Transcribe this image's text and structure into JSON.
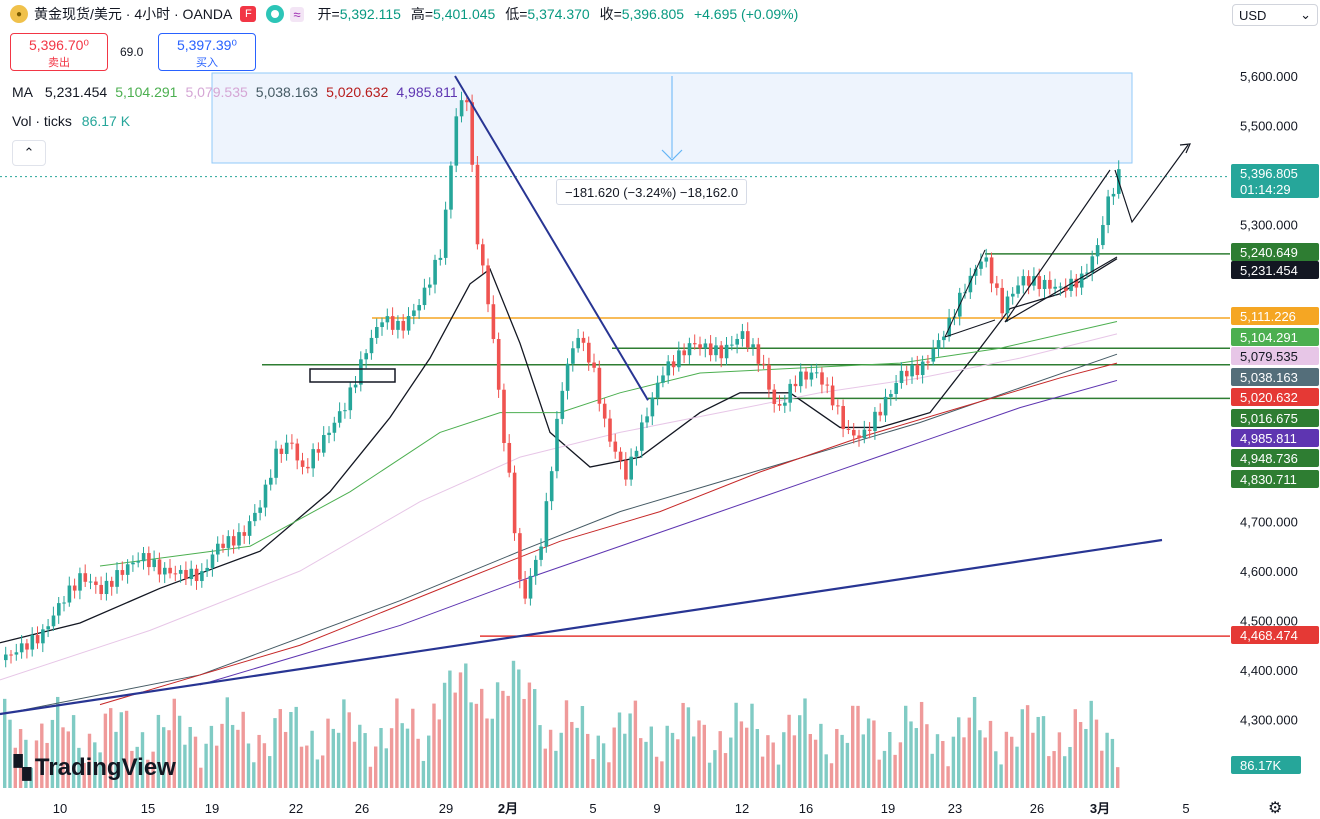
{
  "header": {
    "symbol": "黄金现货/美元 · 4小时 · OANDA",
    "flag_icon": "F",
    "open_label": "开=",
    "open": "5,392.115",
    "high_label": "高=",
    "high": "5,401.045",
    "low_label": "低=",
    "low": "5,374.370",
    "close_label": "收=",
    "close": "5,396.805",
    "change": "+4.695 (+0.09%)"
  },
  "currency": "USD",
  "trade": {
    "sell_price": "5,396.70⁰",
    "sell_label": "卖出",
    "spread": "69.0",
    "buy_price": "5,397.39⁰",
    "buy_label": "买入"
  },
  "ma_legend": {
    "label": "MA",
    "values": [
      {
        "text": "5,231.454",
        "color": "#131722"
      },
      {
        "text": "5,104.291",
        "color": "#4caf50"
      },
      {
        "text": "5,079.535",
        "color": "#d5a6d5"
      },
      {
        "text": "5,038.163",
        "color": "#455a64"
      },
      {
        "text": "5,020.632",
        "color": "#b71c1c"
      },
      {
        "text": "4,985.811",
        "color": "#5e35b1"
      }
    ]
  },
  "volume_legend": {
    "label": "Vol · ticks",
    "value": "86.17 K"
  },
  "measure_label": "−181.620 (−3.24%) −18,162.0",
  "watermark": "TradingView",
  "chart_data": {
    "type": "candlestick",
    "timeframe": "4小时",
    "y_axis": {
      "min": 4200,
      "max": 5690,
      "ticks": [
        4300,
        4400,
        4500,
        4600,
        4700,
        5300,
        5400,
        5500,
        5600
      ],
      "tick_labels": [
        "4,300.000",
        "4,400.000",
        "4,500.000",
        "4,600.000",
        "4,700.000",
        "5,300.000",
        "5,400.000",
        "5,500.000",
        "5,600.000"
      ]
    },
    "x_axis": {
      "ticks": [
        "10",
        "15",
        "19",
        "22",
        "26",
        "29",
        "2月",
        "5",
        "9",
        "12",
        "16",
        "19",
        "23",
        "26",
        "3月",
        "5"
      ]
    },
    "price_path": [
      [
        0,
        4420
      ],
      [
        15,
        4440
      ],
      [
        40,
        4470
      ],
      [
        60,
        4540
      ],
      [
        80,
        4590
      ],
      [
        100,
        4560
      ],
      [
        120,
        4600
      ],
      [
        140,
        4630
      ],
      [
        160,
        4600
      ],
      [
        200,
        4590
      ],
      [
        215,
        4650
      ],
      [
        240,
        4670
      ],
      [
        260,
        4740
      ],
      [
        275,
        4840
      ],
      [
        290,
        4860
      ],
      [
        300,
        4800
      ],
      [
        320,
        4860
      ],
      [
        345,
        4940
      ],
      [
        365,
        5050
      ],
      [
        380,
        5110
      ],
      [
        400,
        5090
      ],
      [
        420,
        5150
      ],
      [
        440,
        5250
      ],
      [
        455,
        5530
      ],
      [
        465,
        5560
      ],
      [
        475,
        5280
      ],
      [
        490,
        5100
      ],
      [
        500,
        4900
      ],
      [
        510,
        4750
      ],
      [
        520,
        4530
      ],
      [
        540,
        4660
      ],
      [
        560,
        4970
      ],
      [
        575,
        5080
      ],
      [
        590,
        5020
      ],
      [
        605,
        4880
      ],
      [
        625,
        4790
      ],
      [
        640,
        4890
      ],
      [
        660,
        5000
      ],
      [
        690,
        5060
      ],
      [
        720,
        5040
      ],
      [
        740,
        5080
      ],
      [
        760,
        5020
      ],
      [
        775,
        4920
      ],
      [
        795,
        4990
      ],
      [
        815,
        5000
      ],
      [
        830,
        4950
      ],
      [
        845,
        4880
      ],
      [
        860,
        4870
      ],
      [
        880,
        4930
      ],
      [
        900,
        5000
      ],
      [
        920,
        5010
      ],
      [
        945,
        5090
      ],
      [
        960,
        5160
      ],
      [
        982,
        5240
      ],
      [
        1000,
        5130
      ],
      [
        1020,
        5190
      ],
      [
        1040,
        5180
      ],
      [
        1060,
        5170
      ],
      [
        1080,
        5190
      ],
      [
        1095,
        5250
      ],
      [
        1105,
        5340
      ],
      [
        1117,
        5400
      ]
    ],
    "ma_lines": [
      {
        "name": "MA",
        "value": 5231.454,
        "color": "#131722",
        "path": [
          [
            0,
            4455
          ],
          [
            80,
            4495
          ],
          [
            160,
            4565
          ],
          [
            260,
            4640
          ],
          [
            330,
            4760
          ],
          [
            390,
            4910
          ],
          [
            430,
            5030
          ],
          [
            470,
            5180
          ],
          [
            490,
            5210
          ],
          [
            520,
            5060
          ],
          [
            550,
            4880
          ],
          [
            590,
            4810
          ],
          [
            640,
            4830
          ],
          [
            700,
            4920
          ],
          [
            740,
            4960
          ],
          [
            790,
            4960
          ],
          [
            840,
            4890
          ],
          [
            880,
            4890
          ],
          [
            930,
            4920
          ],
          [
            980,
            5050
          ],
          [
            1010,
            5130
          ],
          [
            1060,
            5160
          ],
          [
            1117,
            5231
          ]
        ]
      },
      {
        "name": "MA",
        "value": 5104.291,
        "color": "#4caf50",
        "path": [
          [
            100,
            4610
          ],
          [
            250,
            4650
          ],
          [
            350,
            4760
          ],
          [
            440,
            4880
          ],
          [
            500,
            4920
          ],
          [
            560,
            4920
          ],
          [
            620,
            4960
          ],
          [
            700,
            5000
          ],
          [
            800,
            5010
          ],
          [
            900,
            5020
          ],
          [
            1000,
            5050
          ],
          [
            1117,
            5104
          ]
        ]
      },
      {
        "name": "MA",
        "value": 5079.535,
        "color": "#e7c6e7",
        "path": [
          [
            0,
            4380
          ],
          [
            150,
            4480
          ],
          [
            300,
            4600
          ],
          [
            420,
            4740
          ],
          [
            520,
            4830
          ],
          [
            620,
            4880
          ],
          [
            720,
            4920
          ],
          [
            820,
            4960
          ],
          [
            920,
            4990
          ],
          [
            1020,
            5030
          ],
          [
            1117,
            5079
          ]
        ]
      },
      {
        "name": "MA",
        "value": 5038.163,
        "color": "#455a64",
        "path": [
          [
            0,
            4310
          ],
          [
            200,
            4390
          ],
          [
            400,
            4540
          ],
          [
            520,
            4640
          ],
          [
            620,
            4720
          ],
          [
            720,
            4780
          ],
          [
            820,
            4840
          ],
          [
            920,
            4900
          ],
          [
            1020,
            4970
          ],
          [
            1117,
            5038
          ]
        ]
      },
      {
        "name": "MA",
        "value": 5020.632,
        "color": "#c62828",
        "path": [
          [
            100,
            4330
          ],
          [
            300,
            4450
          ],
          [
            460,
            4580
          ],
          [
            560,
            4660
          ],
          [
            660,
            4720
          ],
          [
            760,
            4800
          ],
          [
            860,
            4870
          ],
          [
            960,
            4930
          ],
          [
            1060,
            4990
          ],
          [
            1117,
            5020
          ]
        ]
      },
      {
        "name": "MA",
        "value": 4985.811,
        "color": "#5e35b1",
        "path": [
          [
            200,
            4370
          ],
          [
            400,
            4490
          ],
          [
            520,
            4580
          ],
          [
            620,
            4650
          ],
          [
            720,
            4720
          ],
          [
            820,
            4790
          ],
          [
            920,
            4860
          ],
          [
            1020,
            4930
          ],
          [
            1117,
            4985
          ]
        ]
      }
    ],
    "horizontal_levels": [
      {
        "value": 5240.649,
        "label": "5,240.649",
        "color": "#2e7d32"
      },
      {
        "value": 5111.226,
        "label": "5,111.226",
        "color": "#f5a623"
      },
      {
        "value": 5050.0,
        "label": "",
        "color": "#2e7d32"
      },
      {
        "value": 5016.675,
        "label": "5,016.675",
        "color": "#2e7d32"
      },
      {
        "value": 4948.736,
        "label": "4,948.736",
        "color": "#2e7d32"
      },
      {
        "value": 4468.474,
        "label": "4,468.474",
        "color": "#e53935"
      }
    ],
    "price_tags": [
      {
        "value": 5396.805,
        "label": "5,396.805",
        "sub": "01:14:29",
        "bg": "#26a69a",
        "fg": "#ffffff"
      },
      {
        "value": 5240.649,
        "label": "5,240.649",
        "bg": "#2e7d32",
        "fg": "#ffffff"
      },
      {
        "value": 5231.454,
        "label": "5,231.454",
        "bg": "#131722",
        "fg": "#ffffff"
      },
      {
        "value": 5111.226,
        "label": "5,111.226",
        "bg": "#f5a623",
        "fg": "#ffffff"
      },
      {
        "value": 5104.291,
        "label": "5,104.291",
        "bg": "#4caf50",
        "fg": "#ffffff"
      },
      {
        "value": 5079.535,
        "label": "5,079.535",
        "bg": "#e7c6e7",
        "fg": "#131722"
      },
      {
        "value": 5038.163,
        "label": "5,038.163",
        "bg": "#546e7a",
        "fg": "#ffffff"
      },
      {
        "value": 5020.632,
        "label": "5,020.632",
        "bg": "#e53935",
        "fg": "#ffffff"
      },
      {
        "value": 5016.675,
        "label": "5,016.675",
        "bg": "#2e7d32",
        "fg": "#ffffff"
      },
      {
        "value": 4985.811,
        "label": "4,985.811",
        "bg": "#5e35b1",
        "fg": "#ffffff"
      },
      {
        "value": 4948.736,
        "label": "4,948.736",
        "bg": "#2e7d32",
        "fg": "#ffffff"
      },
      {
        "value": 4830.711,
        "label": "4,830.711",
        "bg": "#2e7d32",
        "fg": "#ffffff"
      },
      {
        "value": 4468.474,
        "label": "4,468.474",
        "bg": "#e53935",
        "fg": "#ffffff"
      }
    ],
    "volume_tag": "86.17K",
    "colors": {
      "up": "#26a69a",
      "down": "#ef5350",
      "volume_up": "#80cbc4",
      "volume_down": "#ef9a9a"
    }
  }
}
